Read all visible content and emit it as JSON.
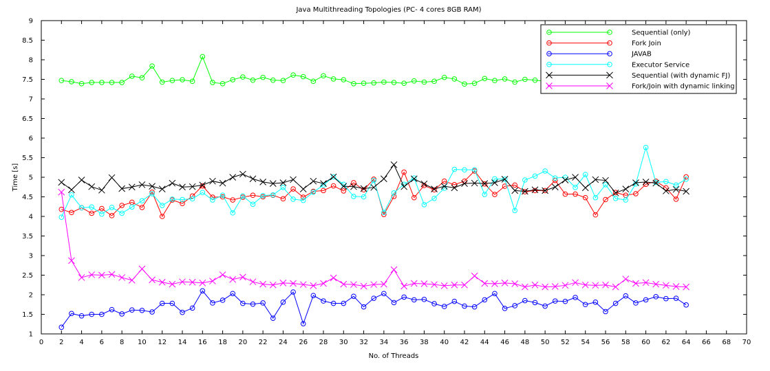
{
  "chart_data": {
    "type": "line",
    "title": "Java Multithreading Topologies (PC- 4 cores 8GB RAM)",
    "xlabel": "No. of Threads",
    "ylabel": "Time [s]",
    "xlim": [
      0,
      70
    ],
    "ylim": [
      1,
      9
    ],
    "xticks": [
      "0",
      "2",
      "4",
      "6",
      "8",
      "10",
      "12",
      "14",
      "16",
      "18",
      "20",
      "22",
      "24",
      "26",
      "28",
      "30",
      "32",
      "34",
      "36",
      "38",
      "40",
      "42",
      "44",
      "46",
      "48",
      "50",
      "52",
      "54",
      "56",
      "58",
      "60",
      "62",
      "64",
      "66",
      "68",
      "70"
    ],
    "yticks": [
      "1",
      "1.5",
      "2",
      "2.5",
      "3",
      "3.5",
      "4",
      "4.5",
      "5",
      "5.5",
      "6",
      "6.5",
      "7",
      "7.5",
      "8",
      "8.5",
      "9"
    ],
    "grid": false,
    "legend_position": "top-right",
    "x": [
      2,
      3,
      4,
      5,
      6,
      7,
      8,
      9,
      10,
      11,
      12,
      13,
      14,
      15,
      16,
      17,
      18,
      19,
      20,
      21,
      22,
      23,
      24,
      25,
      26,
      27,
      28,
      29,
      30,
      31,
      32,
      33,
      34,
      35,
      36,
      37,
      38,
      39,
      40,
      41,
      42,
      43,
      44,
      45,
      46,
      47,
      48,
      49,
      50,
      51,
      52,
      53,
      54,
      55,
      56,
      57,
      58,
      59,
      60,
      61,
      62,
      63,
      64
    ],
    "series": [
      {
        "name": "Sequential (only)",
        "color": "#00ff00",
        "marker": "circle",
        "values": [
          7.47,
          7.44,
          7.39,
          7.42,
          7.42,
          7.42,
          7.42,
          7.58,
          7.54,
          7.84,
          7.43,
          7.47,
          7.49,
          7.45,
          8.08,
          7.42,
          7.39,
          7.49,
          7.56,
          7.48,
          7.55,
          7.48,
          7.47,
          7.61,
          7.57,
          7.45,
          7.59,
          7.51,
          7.49,
          7.39,
          7.4,
          7.41,
          7.43,
          7.42,
          7.4,
          7.46,
          7.43,
          7.45,
          7.55,
          7.51,
          7.38,
          7.4,
          7.52,
          7.47,
          7.51,
          7.43,
          7.5,
          7.48,
          7.45,
          7.44,
          7.46,
          7.44,
          7.45,
          7.44,
          7.42,
          7.44,
          7.4,
          7.5,
          7.46,
          7.46,
          7.44,
          7.45,
          7.47
        ]
      },
      {
        "name": "Fork Join",
        "color": "#ff0000",
        "marker": "circle",
        "values": [
          4.18,
          4.1,
          4.22,
          4.08,
          4.2,
          4.02,
          4.28,
          4.36,
          4.23,
          4.62,
          4.0,
          4.42,
          4.33,
          4.52,
          4.78,
          4.49,
          4.5,
          4.42,
          4.49,
          4.54,
          4.5,
          4.54,
          4.45,
          4.7,
          4.49,
          4.64,
          4.66,
          4.78,
          4.65,
          4.86,
          4.68,
          4.95,
          4.05,
          4.51,
          5.13,
          4.48,
          4.79,
          4.68,
          4.9,
          4.81,
          4.9,
          5.16,
          4.83,
          4.56,
          4.77,
          4.8,
          4.63,
          4.66,
          4.66,
          4.92,
          4.57,
          4.57,
          4.48,
          4.04,
          4.43,
          4.61,
          4.54,
          4.58,
          4.82,
          4.9,
          4.73,
          4.44,
          5.01
        ]
      },
      {
        "name": "JAVAB",
        "color": "#0000ff",
        "marker": "circle",
        "values": [
          1.17,
          1.52,
          1.46,
          1.5,
          1.5,
          1.62,
          1.51,
          1.61,
          1.6,
          1.56,
          1.78,
          1.78,
          1.55,
          1.66,
          2.1,
          1.79,
          1.86,
          2.03,
          1.78,
          1.76,
          1.79,
          1.4,
          1.81,
          2.07,
          1.26,
          1.98,
          1.84,
          1.78,
          1.78,
          1.96,
          1.69,
          1.91,
          2.03,
          1.8,
          1.94,
          1.87,
          1.88,
          1.77,
          1.7,
          1.83,
          1.71,
          1.69,
          1.87,
          2.03,
          1.65,
          1.72,
          1.85,
          1.8,
          1.71,
          1.84,
          1.83,
          1.93,
          1.75,
          1.81,
          1.57,
          1.78,
          1.97,
          1.79,
          1.87,
          1.95,
          1.9,
          1.91,
          1.74
        ]
      },
      {
        "name": "Executor Service",
        "color": "#00ffff",
        "marker": "circle",
        "values": [
          3.98,
          4.55,
          4.22,
          4.24,
          4.06,
          4.23,
          4.08,
          4.24,
          4.4,
          4.58,
          4.28,
          4.44,
          4.43,
          4.45,
          4.61,
          4.42,
          4.54,
          4.09,
          4.52,
          4.31,
          4.53,
          4.55,
          4.74,
          4.44,
          4.41,
          4.62,
          4.8,
          5.01,
          4.82,
          4.51,
          4.5,
          4.92,
          4.1,
          4.6,
          4.82,
          4.98,
          4.3,
          4.46,
          4.72,
          5.2,
          5.19,
          5.19,
          4.56,
          4.96,
          4.95,
          4.15,
          4.93,
          5.03,
          5.16,
          4.98,
          5.0,
          4.74,
          5.07,
          4.48,
          4.81,
          4.46,
          4.42,
          4.83,
          5.76,
          4.87,
          4.89,
          4.8,
          4.95
        ]
      },
      {
        "name": "Sequential (with dynamic FJ)",
        "color": "#000000",
        "marker": "x",
        "values": [
          4.87,
          4.68,
          4.93,
          4.76,
          4.67,
          4.99,
          4.71,
          4.75,
          4.81,
          4.77,
          4.7,
          4.85,
          4.75,
          4.76,
          4.8,
          4.9,
          4.85,
          5.0,
          5.08,
          4.96,
          4.88,
          4.84,
          4.86,
          4.94,
          4.7,
          4.9,
          4.84,
          5.01,
          4.77,
          4.76,
          4.71,
          4.74,
          4.96,
          5.32,
          4.76,
          4.96,
          4.83,
          4.7,
          4.77,
          4.73,
          4.84,
          4.85,
          4.84,
          4.86,
          4.95,
          4.66,
          4.64,
          4.68,
          4.66,
          4.75,
          4.93,
          5.0,
          4.73,
          4.94,
          4.92,
          4.6,
          4.7,
          4.86,
          4.88,
          4.85,
          4.65,
          4.69,
          4.64
        ]
      },
      {
        "name": "Fork/Join with dynamic linking",
        "color": "#ff00ff",
        "marker": "x",
        "values": [
          4.62,
          2.87,
          2.44,
          2.51,
          2.5,
          2.52,
          2.44,
          2.37,
          2.66,
          2.38,
          2.32,
          2.27,
          2.33,
          2.32,
          2.3,
          2.35,
          2.51,
          2.39,
          2.45,
          2.33,
          2.27,
          2.25,
          2.3,
          2.29,
          2.26,
          2.23,
          2.29,
          2.43,
          2.27,
          2.26,
          2.22,
          2.26,
          2.27,
          2.64,
          2.22,
          2.29,
          2.28,
          2.26,
          2.23,
          2.25,
          2.25,
          2.48,
          2.29,
          2.28,
          2.3,
          2.28,
          2.2,
          2.25,
          2.2,
          2.21,
          2.24,
          2.31,
          2.25,
          2.24,
          2.25,
          2.2,
          2.4,
          2.29,
          2.31,
          2.27,
          2.24,
          2.21,
          2.2
        ]
      }
    ]
  }
}
